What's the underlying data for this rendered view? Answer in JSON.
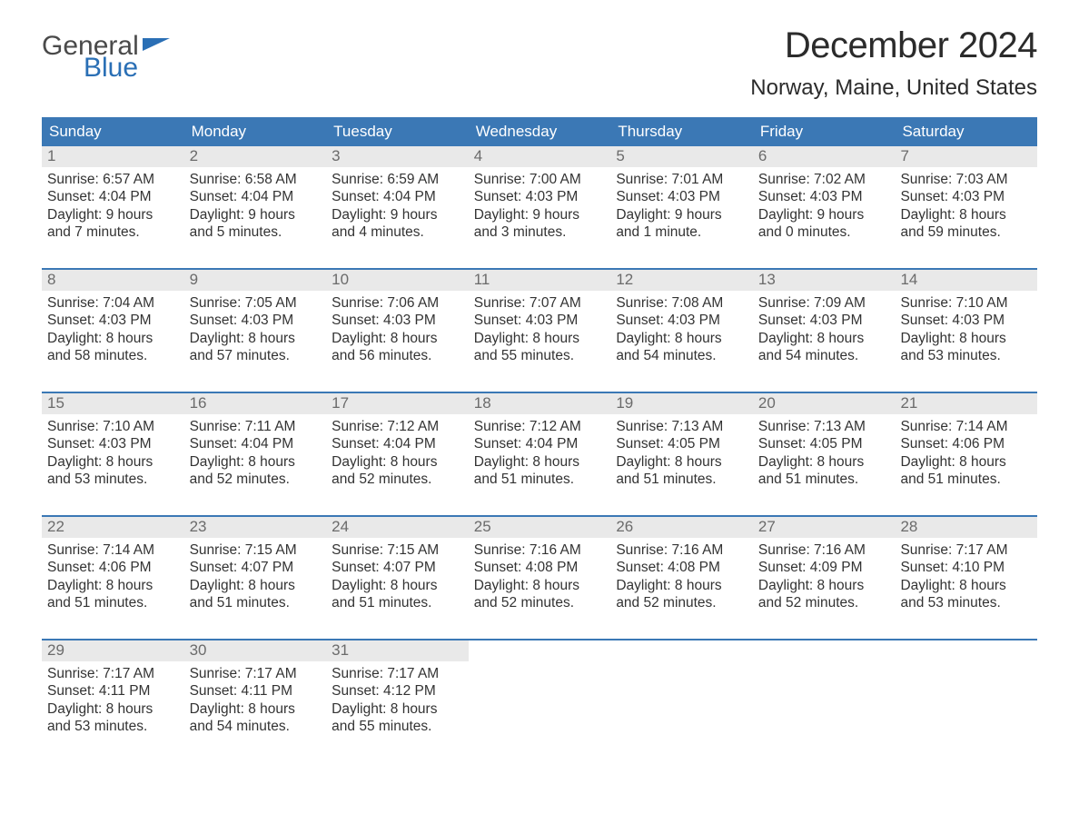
{
  "logo": {
    "line1": "General",
    "line2": "Blue"
  },
  "header": {
    "month_title": "December 2024",
    "location": "Norway, Maine, United States"
  },
  "style": {
    "header_bg": "#3b78b5",
    "header_text": "#ffffff",
    "row_separator": "#3b78b5",
    "daynum_bg": "#e9e9e9",
    "daynum_color": "#6b6b6b",
    "body_text": "#333333",
    "page_bg": "#ffffff",
    "logo_gray": "#4a4a4a",
    "logo_blue": "#2a6fb5",
    "title_fontsize_pt": 30,
    "location_fontsize_pt": 18,
    "weekday_fontsize_pt": 13,
    "body_fontsize_pt": 12
  },
  "weekdays": [
    "Sunday",
    "Monday",
    "Tuesday",
    "Wednesday",
    "Thursday",
    "Friday",
    "Saturday"
  ],
  "weeks": [
    [
      {
        "day": "1",
        "sunrise": "Sunrise: 6:57 AM",
        "sunset": "Sunset: 4:04 PM",
        "daylight1": "Daylight: 9 hours",
        "daylight2": "and 7 minutes."
      },
      {
        "day": "2",
        "sunrise": "Sunrise: 6:58 AM",
        "sunset": "Sunset: 4:04 PM",
        "daylight1": "Daylight: 9 hours",
        "daylight2": "and 5 minutes."
      },
      {
        "day": "3",
        "sunrise": "Sunrise: 6:59 AM",
        "sunset": "Sunset: 4:04 PM",
        "daylight1": "Daylight: 9 hours",
        "daylight2": "and 4 minutes."
      },
      {
        "day": "4",
        "sunrise": "Sunrise: 7:00 AM",
        "sunset": "Sunset: 4:03 PM",
        "daylight1": "Daylight: 9 hours",
        "daylight2": "and 3 minutes."
      },
      {
        "day": "5",
        "sunrise": "Sunrise: 7:01 AM",
        "sunset": "Sunset: 4:03 PM",
        "daylight1": "Daylight: 9 hours",
        "daylight2": "and 1 minute."
      },
      {
        "day": "6",
        "sunrise": "Sunrise: 7:02 AM",
        "sunset": "Sunset: 4:03 PM",
        "daylight1": "Daylight: 9 hours",
        "daylight2": "and 0 minutes."
      },
      {
        "day": "7",
        "sunrise": "Sunrise: 7:03 AM",
        "sunset": "Sunset: 4:03 PM",
        "daylight1": "Daylight: 8 hours",
        "daylight2": "and 59 minutes."
      }
    ],
    [
      {
        "day": "8",
        "sunrise": "Sunrise: 7:04 AM",
        "sunset": "Sunset: 4:03 PM",
        "daylight1": "Daylight: 8 hours",
        "daylight2": "and 58 minutes."
      },
      {
        "day": "9",
        "sunrise": "Sunrise: 7:05 AM",
        "sunset": "Sunset: 4:03 PM",
        "daylight1": "Daylight: 8 hours",
        "daylight2": "and 57 minutes."
      },
      {
        "day": "10",
        "sunrise": "Sunrise: 7:06 AM",
        "sunset": "Sunset: 4:03 PM",
        "daylight1": "Daylight: 8 hours",
        "daylight2": "and 56 minutes."
      },
      {
        "day": "11",
        "sunrise": "Sunrise: 7:07 AM",
        "sunset": "Sunset: 4:03 PM",
        "daylight1": "Daylight: 8 hours",
        "daylight2": "and 55 minutes."
      },
      {
        "day": "12",
        "sunrise": "Sunrise: 7:08 AM",
        "sunset": "Sunset: 4:03 PM",
        "daylight1": "Daylight: 8 hours",
        "daylight2": "and 54 minutes."
      },
      {
        "day": "13",
        "sunrise": "Sunrise: 7:09 AM",
        "sunset": "Sunset: 4:03 PM",
        "daylight1": "Daylight: 8 hours",
        "daylight2": "and 54 minutes."
      },
      {
        "day": "14",
        "sunrise": "Sunrise: 7:10 AM",
        "sunset": "Sunset: 4:03 PM",
        "daylight1": "Daylight: 8 hours",
        "daylight2": "and 53 minutes."
      }
    ],
    [
      {
        "day": "15",
        "sunrise": "Sunrise: 7:10 AM",
        "sunset": "Sunset: 4:03 PM",
        "daylight1": "Daylight: 8 hours",
        "daylight2": "and 53 minutes."
      },
      {
        "day": "16",
        "sunrise": "Sunrise: 7:11 AM",
        "sunset": "Sunset: 4:04 PM",
        "daylight1": "Daylight: 8 hours",
        "daylight2": "and 52 minutes."
      },
      {
        "day": "17",
        "sunrise": "Sunrise: 7:12 AM",
        "sunset": "Sunset: 4:04 PM",
        "daylight1": "Daylight: 8 hours",
        "daylight2": "and 52 minutes."
      },
      {
        "day": "18",
        "sunrise": "Sunrise: 7:12 AM",
        "sunset": "Sunset: 4:04 PM",
        "daylight1": "Daylight: 8 hours",
        "daylight2": "and 51 minutes."
      },
      {
        "day": "19",
        "sunrise": "Sunrise: 7:13 AM",
        "sunset": "Sunset: 4:05 PM",
        "daylight1": "Daylight: 8 hours",
        "daylight2": "and 51 minutes."
      },
      {
        "day": "20",
        "sunrise": "Sunrise: 7:13 AM",
        "sunset": "Sunset: 4:05 PM",
        "daylight1": "Daylight: 8 hours",
        "daylight2": "and 51 minutes."
      },
      {
        "day": "21",
        "sunrise": "Sunrise: 7:14 AM",
        "sunset": "Sunset: 4:06 PM",
        "daylight1": "Daylight: 8 hours",
        "daylight2": "and 51 minutes."
      }
    ],
    [
      {
        "day": "22",
        "sunrise": "Sunrise: 7:14 AM",
        "sunset": "Sunset: 4:06 PM",
        "daylight1": "Daylight: 8 hours",
        "daylight2": "and 51 minutes."
      },
      {
        "day": "23",
        "sunrise": "Sunrise: 7:15 AM",
        "sunset": "Sunset: 4:07 PM",
        "daylight1": "Daylight: 8 hours",
        "daylight2": "and 51 minutes."
      },
      {
        "day": "24",
        "sunrise": "Sunrise: 7:15 AM",
        "sunset": "Sunset: 4:07 PM",
        "daylight1": "Daylight: 8 hours",
        "daylight2": "and 51 minutes."
      },
      {
        "day": "25",
        "sunrise": "Sunrise: 7:16 AM",
        "sunset": "Sunset: 4:08 PM",
        "daylight1": "Daylight: 8 hours",
        "daylight2": "and 52 minutes."
      },
      {
        "day": "26",
        "sunrise": "Sunrise: 7:16 AM",
        "sunset": "Sunset: 4:08 PM",
        "daylight1": "Daylight: 8 hours",
        "daylight2": "and 52 minutes."
      },
      {
        "day": "27",
        "sunrise": "Sunrise: 7:16 AM",
        "sunset": "Sunset: 4:09 PM",
        "daylight1": "Daylight: 8 hours",
        "daylight2": "and 52 minutes."
      },
      {
        "day": "28",
        "sunrise": "Sunrise: 7:17 AM",
        "sunset": "Sunset: 4:10 PM",
        "daylight1": "Daylight: 8 hours",
        "daylight2": "and 53 minutes."
      }
    ],
    [
      {
        "day": "29",
        "sunrise": "Sunrise: 7:17 AM",
        "sunset": "Sunset: 4:11 PM",
        "daylight1": "Daylight: 8 hours",
        "daylight2": "and 53 minutes."
      },
      {
        "day": "30",
        "sunrise": "Sunrise: 7:17 AM",
        "sunset": "Sunset: 4:11 PM",
        "daylight1": "Daylight: 8 hours",
        "daylight2": "and 54 minutes."
      },
      {
        "day": "31",
        "sunrise": "Sunrise: 7:17 AM",
        "sunset": "Sunset: 4:12 PM",
        "daylight1": "Daylight: 8 hours",
        "daylight2": "and 55 minutes."
      },
      {
        "day": "",
        "sunrise": "",
        "sunset": "",
        "daylight1": "",
        "daylight2": ""
      },
      {
        "day": "",
        "sunrise": "",
        "sunset": "",
        "daylight1": "",
        "daylight2": ""
      },
      {
        "day": "",
        "sunrise": "",
        "sunset": "",
        "daylight1": "",
        "daylight2": ""
      },
      {
        "day": "",
        "sunrise": "",
        "sunset": "",
        "daylight1": "",
        "daylight2": ""
      }
    ]
  ]
}
